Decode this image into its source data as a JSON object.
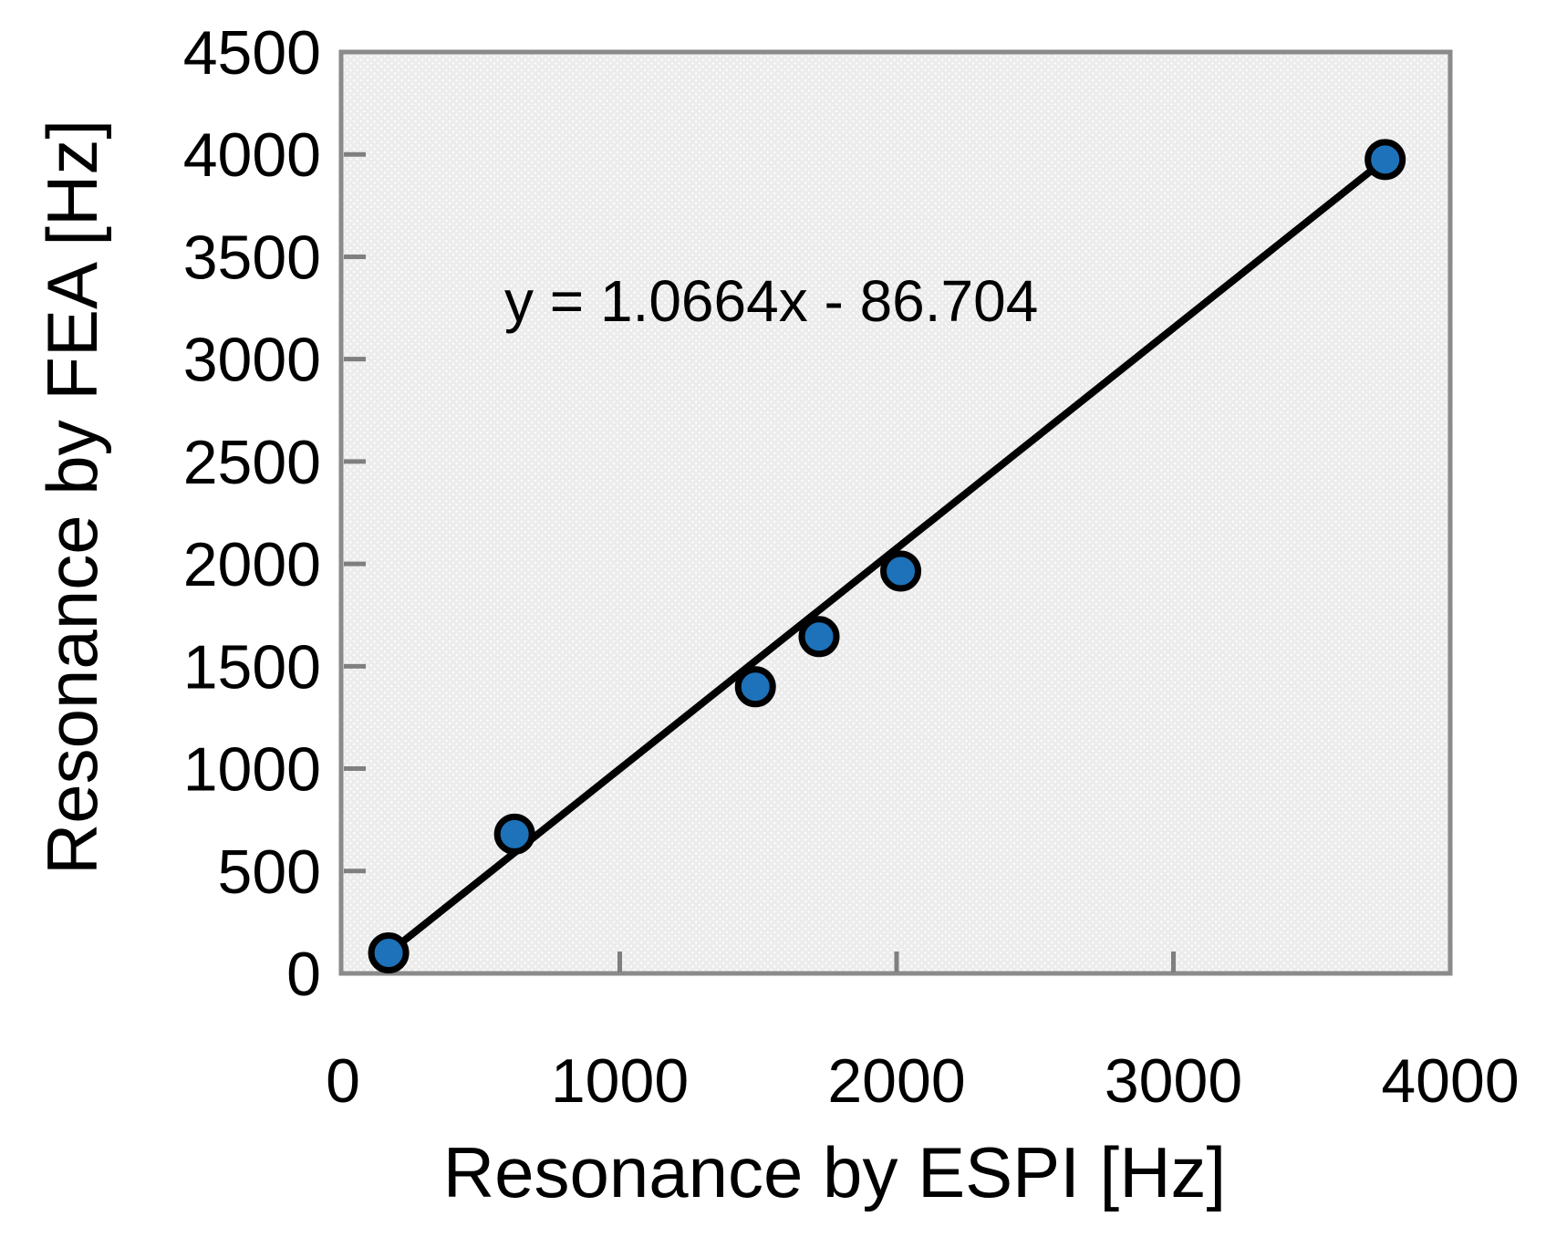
{
  "chart_data": {
    "type": "scatter",
    "title": "",
    "xlabel": "Resonance by ESPI [Hz]",
    "ylabel": "Resonance by FEA [Hz]",
    "annotation": "y = 1.0664x - 86.704",
    "xlim": [
      0,
      4000
    ],
    "ylim": [
      0,
      4500
    ],
    "x_ticks": [
      0,
      1000,
      2000,
      3000,
      4000
    ],
    "y_ticks": [
      0,
      500,
      1000,
      1500,
      2000,
      2500,
      3000,
      3500,
      4000,
      4500
    ],
    "grid": false,
    "legend": false,
    "points": [
      {
        "x": 165,
        "y": 100
      },
      {
        "x": 620,
        "y": 680
      },
      {
        "x": 1490,
        "y": 1400
      },
      {
        "x": 1720,
        "y": 1645
      },
      {
        "x": 2015,
        "y": 1965
      },
      {
        "x": 3765,
        "y": 3975
      }
    ],
    "trendline": {
      "slope": 1.0664,
      "intercept": -86.704
    },
    "colors": {
      "marker_fill": "#1D72B9",
      "marker_stroke": "#000000",
      "trendline": "#000000",
      "plot_background": "#ECECEC",
      "plot_dots": "#FFFFFF",
      "plot_border": "#8A8A8A",
      "tick": "#7F7F7F",
      "text": "#000000"
    }
  }
}
